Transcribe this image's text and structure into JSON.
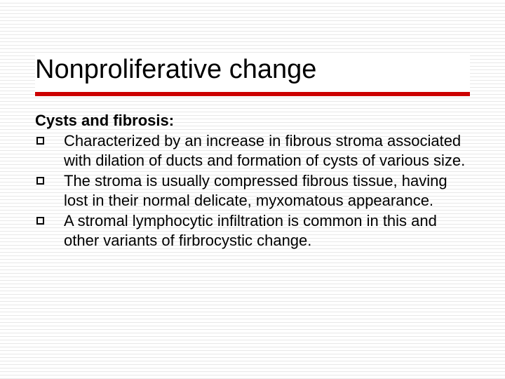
{
  "slide": {
    "title": "Nonproliferative change",
    "subheading": "Cysts and fibrosis:",
    "bullets": [
      "Characterized by an increase in fibrous stroma associated with dilation of ducts and formation of cysts of various size.",
      "The stroma is usually compressed fibrous tissue, having lost in their normal delicate, myxomatous appearance.",
      "A stromal lymphocytic infiltration is common in this and other variants of firbrocystic change."
    ]
  },
  "style": {
    "title_fontsize": 38,
    "body_fontsize": 22,
    "title_color": "#000000",
    "body_color": "#000000",
    "accent_rule_color": "#cc0000",
    "accent_rule_height": 6,
    "background_color": "#ffffff",
    "line_color": "#e8e8e8",
    "bullet_marker": {
      "type": "hollow-square",
      "size": 11,
      "border_width": 2,
      "border_color": "#000000"
    },
    "font_family": "Verdana"
  }
}
